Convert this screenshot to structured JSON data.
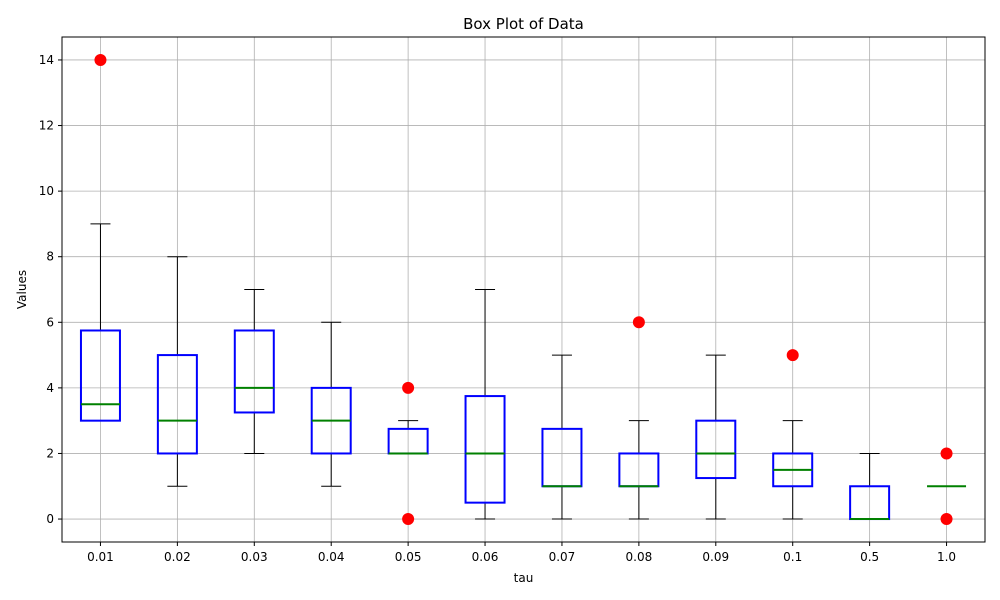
{
  "chart_data": {
    "type": "box",
    "title": "Box Plot of Data",
    "xlabel": "tau",
    "ylabel": "Values",
    "ylim": [
      -0.7,
      14.7
    ],
    "y_ticks": [
      0,
      2,
      4,
      6,
      8,
      10,
      12,
      14
    ],
    "grid": true,
    "colors": {
      "box": "#0000ff",
      "median": "#008000",
      "whisker": "#000000",
      "outlier": "#ff0000",
      "grid": "#b0b0b0"
    },
    "categories": [
      "0.01",
      "0.02",
      "0.03",
      "0.04",
      "0.05",
      "0.06",
      "0.07",
      "0.08",
      "0.09",
      "0.1",
      "0.5",
      "1.0"
    ],
    "boxes": [
      {
        "category": "0.01",
        "whisker_low": 3,
        "q1": 3,
        "median": 3.5,
        "q3": 5.75,
        "whisker_high": 9,
        "outliers": [
          14
        ]
      },
      {
        "category": "0.02",
        "whisker_low": 1,
        "q1": 2,
        "median": 3,
        "q3": 5,
        "whisker_high": 8,
        "outliers": []
      },
      {
        "category": "0.03",
        "whisker_low": 2,
        "q1": 3.25,
        "median": 4,
        "q3": 5.75,
        "whisker_high": 7,
        "outliers": []
      },
      {
        "category": "0.04",
        "whisker_low": 1,
        "q1": 2,
        "median": 3,
        "q3": 4,
        "whisker_high": 6,
        "outliers": []
      },
      {
        "category": "0.05",
        "whisker_low": 2,
        "q1": 2,
        "median": 2,
        "q3": 2.75,
        "whisker_high": 3,
        "outliers": [
          4,
          0
        ]
      },
      {
        "category": "0.06",
        "whisker_low": 0,
        "q1": 0.5,
        "median": 2,
        "q3": 3.75,
        "whisker_high": 7,
        "outliers": []
      },
      {
        "category": "0.07",
        "whisker_low": 0,
        "q1": 1,
        "median": 1,
        "q3": 2.75,
        "whisker_high": 5,
        "outliers": []
      },
      {
        "category": "0.08",
        "whisker_low": 0,
        "q1": 1,
        "median": 1,
        "q3": 2,
        "whisker_high": 3,
        "outliers": [
          6
        ]
      },
      {
        "category": "0.09",
        "whisker_low": 0,
        "q1": 1.25,
        "median": 2,
        "q3": 3,
        "whisker_high": 5,
        "outliers": []
      },
      {
        "category": "0.1",
        "whisker_low": 0,
        "q1": 1,
        "median": 1.5,
        "q3": 2,
        "whisker_high": 3,
        "outliers": [
          5
        ]
      },
      {
        "category": "0.5",
        "whisker_low": 0,
        "q1": 0,
        "median": 0,
        "q3": 1,
        "whisker_high": 2,
        "outliers": []
      },
      {
        "category": "1.0",
        "whisker_low": 1,
        "q1": 1,
        "median": 1,
        "q3": 1,
        "whisker_high": 1,
        "outliers": [
          2,
          0
        ]
      }
    ]
  }
}
